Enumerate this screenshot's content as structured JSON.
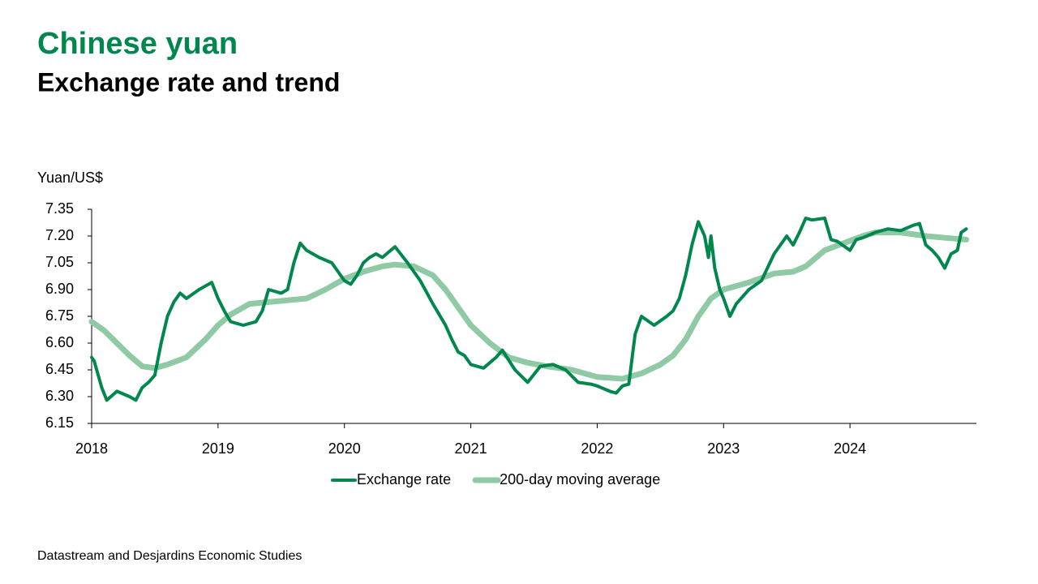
{
  "chart_data": {
    "type": "line",
    "title": "Chinese yuan",
    "subtitle": "Exchange rate and trend",
    "y_label": "Yuan/US$",
    "source": "Datastream and Desjardins Economic Studies",
    "xlim": [
      2018,
      2025
    ],
    "xticks": [
      2018,
      2019,
      2020,
      2021,
      2022,
      2023,
      2024
    ],
    "ylim": [
      6.15,
      7.35
    ],
    "yticks": [
      7.35,
      {
        "value": 7.2,
        "label": "7.20"
      },
      7.05,
      {
        "value": 6.9,
        "label": "6.90"
      },
      6.75,
      {
        "value": 6.6,
        "label": "6.60"
      },
      6.45,
      {
        "value": 6.3,
        "label": "6.30"
      },
      6.15
    ],
    "legend": "bottom",
    "series": [
      {
        "name": "Exchange rate",
        "color": "#00874e",
        "width": 4,
        "x": [
          2018.0,
          2018.02,
          2018.08,
          2018.12,
          2018.2,
          2018.3,
          2018.35,
          2018.4,
          2018.45,
          2018.5,
          2018.55,
          2018.6,
          2018.65,
          2018.7,
          2018.75,
          2018.85,
          2018.95,
          2019.0,
          2019.05,
          2019.1,
          2019.2,
          2019.3,
          2019.35,
          2019.4,
          2019.5,
          2019.55,
          2019.6,
          2019.65,
          2019.7,
          2019.8,
          2019.9,
          2020.0,
          2020.05,
          2020.1,
          2020.15,
          2020.2,
          2020.25,
          2020.3,
          2020.4,
          2020.5,
          2020.6,
          2020.7,
          2020.8,
          2020.85,
          2020.9,
          2020.95,
          2021.0,
          2021.1,
          2021.2,
          2021.25,
          2021.35,
          2021.45,
          2021.55,
          2021.65,
          2021.75,
          2021.85,
          2021.95,
          2022.0,
          2022.1,
          2022.15,
          2022.2,
          2022.25,
          2022.3,
          2022.35,
          2022.45,
          2022.55,
          2022.6,
          2022.65,
          2022.7,
          2022.75,
          2022.8,
          2022.85,
          2022.88,
          2022.9,
          2022.93,
          2022.97,
          2023.0,
          2023.05,
          2023.1,
          2023.2,
          2023.3,
          2023.4,
          2023.5,
          2023.55,
          2023.6,
          2023.65,
          2023.7,
          2023.8,
          2023.85,
          2023.9,
          2024.0,
          2024.05,
          2024.1,
          2024.2,
          2024.3,
          2024.4,
          2024.5,
          2024.55,
          2024.6,
          2024.65,
          2024.7,
          2024.75,
          2024.8,
          2024.85,
          2024.88,
          2024.92
        ],
        "values": [
          6.52,
          6.5,
          6.35,
          6.28,
          6.33,
          6.3,
          6.28,
          6.35,
          6.38,
          6.42,
          6.6,
          6.75,
          6.83,
          6.88,
          6.85,
          6.9,
          6.94,
          6.85,
          6.78,
          6.72,
          6.7,
          6.72,
          6.78,
          6.9,
          6.88,
          6.9,
          7.05,
          7.16,
          7.12,
          7.08,
          7.05,
          6.95,
          6.93,
          6.98,
          7.05,
          7.08,
          7.1,
          7.08,
          7.14,
          7.05,
          6.95,
          6.82,
          6.7,
          6.62,
          6.55,
          6.53,
          6.48,
          6.46,
          6.52,
          6.56,
          6.45,
          6.38,
          6.47,
          6.48,
          6.45,
          6.38,
          6.37,
          6.36,
          6.33,
          6.32,
          6.36,
          6.37,
          6.65,
          6.75,
          6.7,
          6.75,
          6.78,
          6.85,
          6.98,
          7.15,
          7.28,
          7.2,
          7.08,
          7.2,
          7.02,
          6.9,
          6.85,
          6.75,
          6.82,
          6.9,
          6.95,
          7.1,
          7.2,
          7.15,
          7.22,
          7.3,
          7.29,
          7.3,
          7.18,
          7.17,
          7.12,
          7.18,
          7.19,
          7.22,
          7.24,
          7.23,
          7.26,
          7.27,
          7.15,
          7.12,
          7.08,
          7.02,
          7.1,
          7.12,
          7.22,
          7.24
        ]
      },
      {
        "name": "200-day moving average",
        "color": "#8fcaa4",
        "width": 7,
        "x": [
          2018.0,
          2018.1,
          2018.2,
          2018.3,
          2018.4,
          2018.5,
          2018.6,
          2018.75,
          2018.9,
          2019.0,
          2019.1,
          2019.25,
          2019.4,
          2019.55,
          2019.7,
          2019.85,
          2020.0,
          2020.15,
          2020.3,
          2020.4,
          2020.55,
          2020.7,
          2020.8,
          2020.9,
          2021.0,
          2021.15,
          2021.3,
          2021.45,
          2021.6,
          2021.8,
          2022.0,
          2022.2,
          2022.35,
          2022.5,
          2022.6,
          2022.7,
          2022.8,
          2022.9,
          2023.0,
          2023.2,
          2023.4,
          2023.55,
          2023.65,
          2023.8,
          2023.95,
          2024.1,
          2024.2,
          2024.4,
          2024.6,
          2024.75,
          2024.92
        ],
        "values": [
          6.72,
          6.67,
          6.6,
          6.53,
          6.47,
          6.46,
          6.48,
          6.52,
          6.62,
          6.7,
          6.76,
          6.82,
          6.83,
          6.84,
          6.85,
          6.9,
          6.96,
          7.0,
          7.03,
          7.04,
          7.03,
          6.98,
          6.9,
          6.8,
          6.7,
          6.6,
          6.52,
          6.49,
          6.47,
          6.45,
          6.41,
          6.4,
          6.43,
          6.48,
          6.53,
          6.62,
          6.75,
          6.85,
          6.9,
          6.94,
          6.99,
          7.0,
          7.03,
          7.12,
          7.16,
          7.2,
          7.22,
          7.22,
          7.2,
          7.19,
          7.18
        ]
      }
    ]
  }
}
